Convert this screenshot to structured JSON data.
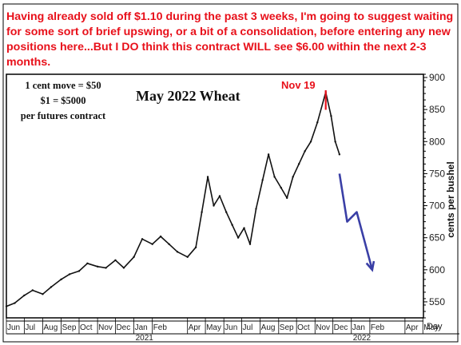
{
  "header_note": "Having already sold off $1.10 during the past 3 weeks, I'm going to suggest waiting for some sort of brief upswing, or a bit of a consolidation, before entering any new positions here...But I DO think this contract WILL see $6.00 within the next 2-3 months.",
  "info_box": {
    "line1": "1 cent move = $50",
    "line2": "$1 = $5000",
    "line3": "per futures contract"
  },
  "colors": {
    "annotation_red": "#e8101a",
    "projection_blue": "#3a3fa6",
    "price_line": "#111111"
  },
  "chart_data": {
    "type": "line",
    "title": "May 2022 Wheat",
    "ylabel": "cents per bushel",
    "xlabel": "Day",
    "ylim": [
      525,
      905
    ],
    "y_ticks": [
      550,
      600,
      650,
      700,
      750,
      800,
      850,
      900
    ],
    "grid": false,
    "month_ticks": [
      "Jun",
      "Jul",
      "Aug",
      "Sep",
      "Oct",
      "Nov",
      "Dec",
      "Jan",
      "Feb",
      "Apr",
      "May",
      "Jun",
      "Jul",
      "Aug",
      "Sep",
      "Oct",
      "Nov",
      "Dec",
      "Jan",
      "Feb",
      "Apr",
      "May"
    ],
    "year_labels": [
      "2021",
      "2022"
    ],
    "annotation": {
      "label": "Nov 19",
      "x": "2021-11-19",
      "y": 877
    },
    "series": [
      {
        "role": "price",
        "points": [
          [
            "2020-06-01",
            543
          ],
          [
            "2020-06-15",
            548
          ],
          [
            "2020-07-01",
            560
          ],
          [
            "2020-07-15",
            568
          ],
          [
            "2020-08-01",
            562
          ],
          [
            "2020-08-15",
            573
          ],
          [
            "2020-09-01",
            585
          ],
          [
            "2020-09-15",
            593
          ],
          [
            "2020-10-01",
            598
          ],
          [
            "2020-10-15",
            610
          ],
          [
            "2020-11-01",
            605
          ],
          [
            "2020-11-15",
            603
          ],
          [
            "2020-12-01",
            615
          ],
          [
            "2020-12-15",
            603
          ],
          [
            "2021-01-01",
            620
          ],
          [
            "2021-01-15",
            648
          ],
          [
            "2021-02-01",
            640
          ],
          [
            "2021-02-15",
            652
          ],
          [
            "2021-03-01",
            640
          ],
          [
            "2021-03-15",
            628
          ],
          [
            "2021-04-01",
            620
          ],
          [
            "2021-04-15",
            635
          ],
          [
            "2021-04-25",
            690
          ],
          [
            "2021-05-05",
            745
          ],
          [
            "2021-05-15",
            700
          ],
          [
            "2021-05-25",
            715
          ],
          [
            "2021-06-05",
            690
          ],
          [
            "2021-06-15",
            670
          ],
          [
            "2021-06-25",
            650
          ],
          [
            "2021-07-05",
            665
          ],
          [
            "2021-07-15",
            640
          ],
          [
            "2021-07-25",
            695
          ],
          [
            "2021-08-05",
            740
          ],
          [
            "2021-08-15",
            780
          ],
          [
            "2021-08-25",
            745
          ],
          [
            "2021-09-05",
            728
          ],
          [
            "2021-09-15",
            712
          ],
          [
            "2021-09-25",
            745
          ],
          [
            "2021-10-05",
            765
          ],
          [
            "2021-10-15",
            785
          ],
          [
            "2021-10-25",
            800
          ],
          [
            "2021-11-05",
            830
          ],
          [
            "2021-11-19",
            877
          ],
          [
            "2021-11-28",
            840
          ],
          [
            "2021-12-05",
            800
          ],
          [
            "2021-12-12",
            780
          ]
        ]
      },
      {
        "role": "projection",
        "points": [
          [
            "2021-12-12",
            750
          ],
          [
            "2021-12-25",
            675
          ],
          [
            "2022-01-10",
            690
          ],
          [
            "2022-02-05",
            600
          ]
        ]
      }
    ]
  }
}
